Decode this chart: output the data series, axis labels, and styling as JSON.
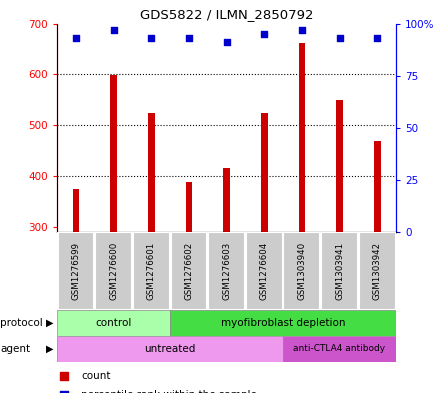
{
  "title": "GDS5822 / ILMN_2850792",
  "samples": [
    "GSM1276599",
    "GSM1276600",
    "GSM1276601",
    "GSM1276602",
    "GSM1276603",
    "GSM1276604",
    "GSM1303940",
    "GSM1303941",
    "GSM1303942"
  ],
  "counts": [
    375,
    598,
    524,
    388,
    415,
    524,
    662,
    550,
    468
  ],
  "percentiles": [
    93,
    97,
    93,
    93,
    91,
    95,
    97,
    93,
    93
  ],
  "ylim_left": [
    290,
    700
  ],
  "ylim_right": [
    0,
    100
  ],
  "yticks_left": [
    300,
    400,
    500,
    600,
    700
  ],
  "yticks_right": [
    0,
    25,
    50,
    75,
    100
  ],
  "yticklabels_right": [
    "0",
    "25",
    "50",
    "75",
    "100%"
  ],
  "bar_color": "#cc0000",
  "dot_color": "#0000cc",
  "bar_bottom": 290,
  "protocol_control_n": 3,
  "protocol_myof_n": 6,
  "protocol_labels": [
    "control",
    "myofibroblast depletion"
  ],
  "agent_untreated_n": 6,
  "agent_antibody_n": 3,
  "agent_labels": [
    "untreated",
    "anti-CTLA4 antibody"
  ],
  "color_control": "#aaffaa",
  "color_myofibroblast": "#44dd44",
  "color_untreated": "#ee99ee",
  "color_antibody": "#cc55cc",
  "sample_bg_color": "#cccccc",
  "sample_edge_color": "#ffffff"
}
